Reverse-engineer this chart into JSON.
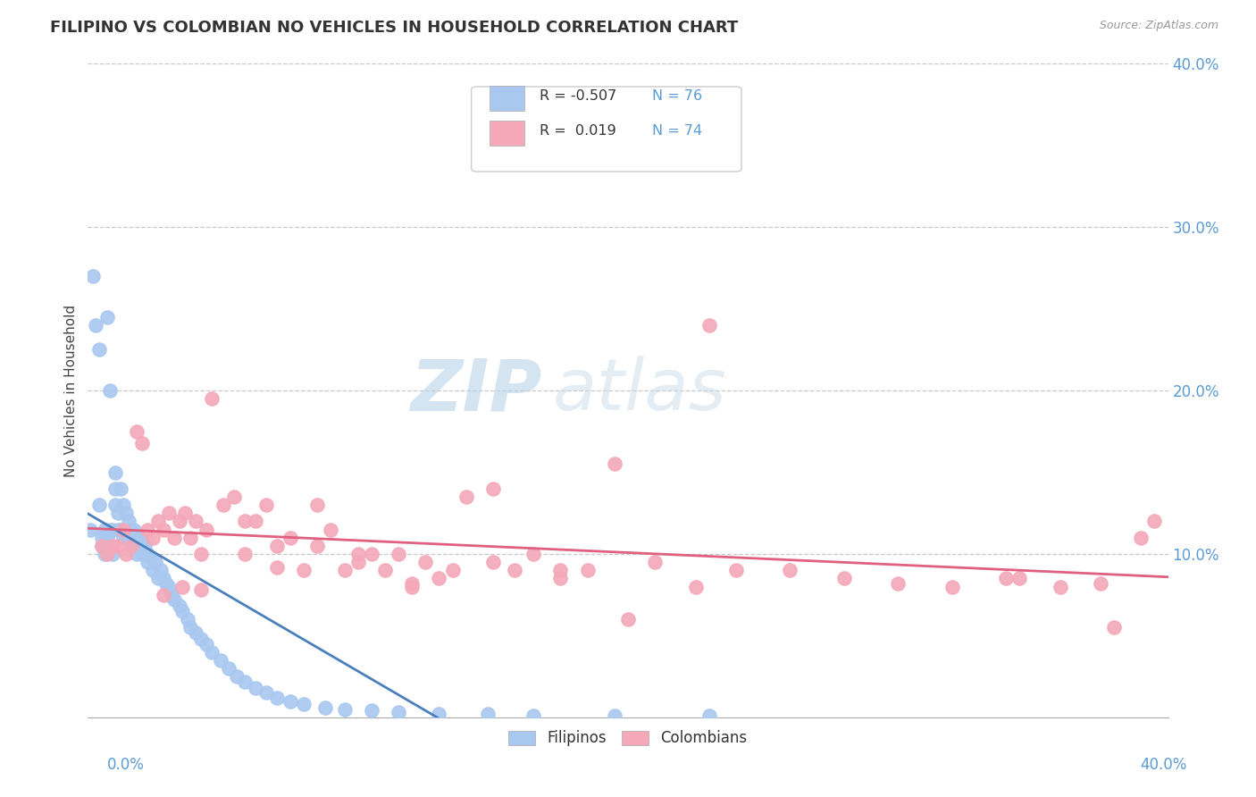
{
  "title": "FILIPINO VS COLOMBIAN NO VEHICLES IN HOUSEHOLD CORRELATION CHART",
  "source": "Source: ZipAtlas.com",
  "ylabel": "No Vehicles in Household",
  "xlim": [
    0.0,
    0.4
  ],
  "ylim": [
    0.0,
    0.4
  ],
  "yticks": [
    0.0,
    0.1,
    0.2,
    0.3,
    0.4
  ],
  "ytick_labels": [
    "",
    "10.0%",
    "20.0%",
    "30.0%",
    "40.0%"
  ],
  "legend_r_filipino": "-0.507",
  "legend_n_filipino": "76",
  "legend_r_colombian": "0.019",
  "legend_n_colombian": "74",
  "filipino_color": "#a8c8f0",
  "colombian_color": "#f4a8b8",
  "filipino_line_color": "#4a7fbd",
  "colombian_line_color": "#e06080",
  "background_color": "#ffffff",
  "grid_color": "#c8c8c8",
  "tick_color": "#5b9bd5",
  "watermark_zip": "ZIP",
  "watermark_atlas": "atlas",
  "filipino_x": [
    0.001,
    0.002,
    0.003,
    0.004,
    0.004,
    0.005,
    0.005,
    0.006,
    0.006,
    0.007,
    0.007,
    0.008,
    0.008,
    0.009,
    0.009,
    0.01,
    0.01,
    0.01,
    0.011,
    0.011,
    0.012,
    0.012,
    0.013,
    0.013,
    0.014,
    0.014,
    0.015,
    0.015,
    0.016,
    0.016,
    0.017,
    0.017,
    0.018,
    0.018,
    0.019,
    0.02,
    0.02,
    0.021,
    0.022,
    0.022,
    0.023,
    0.024,
    0.025,
    0.026,
    0.027,
    0.028,
    0.029,
    0.03,
    0.031,
    0.032,
    0.034,
    0.035,
    0.037,
    0.038,
    0.04,
    0.042,
    0.044,
    0.046,
    0.049,
    0.052,
    0.055,
    0.058,
    0.062,
    0.066,
    0.07,
    0.075,
    0.08,
    0.088,
    0.095,
    0.105,
    0.115,
    0.13,
    0.148,
    0.165,
    0.195,
    0.23
  ],
  "filipino_y": [
    0.115,
    0.27,
    0.24,
    0.225,
    0.13,
    0.11,
    0.105,
    0.115,
    0.1,
    0.245,
    0.11,
    0.2,
    0.115,
    0.115,
    0.1,
    0.15,
    0.14,
    0.13,
    0.125,
    0.115,
    0.14,
    0.115,
    0.13,
    0.11,
    0.125,
    0.115,
    0.12,
    0.11,
    0.115,
    0.11,
    0.115,
    0.105,
    0.108,
    0.1,
    0.11,
    0.108,
    0.1,
    0.105,
    0.1,
    0.095,
    0.098,
    0.09,
    0.095,
    0.085,
    0.09,
    0.085,
    0.082,
    0.08,
    0.075,
    0.072,
    0.068,
    0.065,
    0.06,
    0.055,
    0.052,
    0.048,
    0.045,
    0.04,
    0.035,
    0.03,
    0.025,
    0.022,
    0.018,
    0.015,
    0.012,
    0.01,
    0.008,
    0.006,
    0.005,
    0.004,
    0.003,
    0.002,
    0.002,
    0.001,
    0.001,
    0.001
  ],
  "colombian_x": [
    0.005,
    0.007,
    0.009,
    0.011,
    0.013,
    0.014,
    0.016,
    0.018,
    0.02,
    0.022,
    0.024,
    0.026,
    0.028,
    0.03,
    0.032,
    0.034,
    0.036,
    0.038,
    0.04,
    0.042,
    0.044,
    0.046,
    0.05,
    0.054,
    0.058,
    0.062,
    0.066,
    0.07,
    0.075,
    0.08,
    0.085,
    0.09,
    0.095,
    0.1,
    0.105,
    0.11,
    0.115,
    0.12,
    0.125,
    0.13,
    0.135,
    0.14,
    0.15,
    0.158,
    0.165,
    0.175,
    0.185,
    0.195,
    0.21,
    0.225,
    0.24,
    0.26,
    0.28,
    0.3,
    0.32,
    0.34,
    0.36,
    0.375,
    0.39,
    0.395,
    0.028,
    0.035,
    0.042,
    0.058,
    0.07,
    0.085,
    0.1,
    0.12,
    0.15,
    0.175,
    0.2,
    0.23,
    0.345,
    0.38
  ],
  "colombian_y": [
    0.105,
    0.1,
    0.105,
    0.105,
    0.115,
    0.1,
    0.105,
    0.175,
    0.168,
    0.115,
    0.11,
    0.12,
    0.115,
    0.125,
    0.11,
    0.12,
    0.125,
    0.11,
    0.12,
    0.1,
    0.115,
    0.195,
    0.13,
    0.135,
    0.1,
    0.12,
    0.13,
    0.105,
    0.11,
    0.09,
    0.105,
    0.115,
    0.09,
    0.095,
    0.1,
    0.09,
    0.1,
    0.08,
    0.095,
    0.085,
    0.09,
    0.135,
    0.095,
    0.09,
    0.1,
    0.085,
    0.09,
    0.155,
    0.095,
    0.08,
    0.09,
    0.09,
    0.085,
    0.082,
    0.08,
    0.085,
    0.08,
    0.082,
    0.11,
    0.12,
    0.075,
    0.08,
    0.078,
    0.12,
    0.092,
    0.13,
    0.1,
    0.082,
    0.14,
    0.09,
    0.06,
    0.24,
    0.085,
    0.055
  ]
}
